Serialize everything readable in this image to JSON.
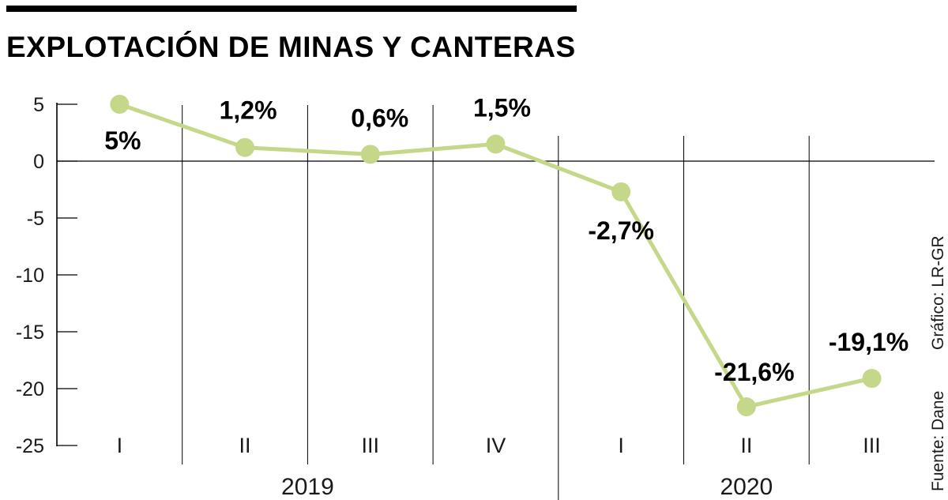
{
  "chart_data": {
    "type": "line",
    "title": "EXPLOTACIÓN DE MINAS Y CANTERAS",
    "categories": [
      "I",
      "II",
      "III",
      "IV",
      "I",
      "II",
      "III"
    ],
    "years": [
      "2019",
      "2020"
    ],
    "values": [
      5,
      1.2,
      0.6,
      1.5,
      -2.7,
      -21.6,
      -19.1
    ],
    "data_labels": [
      "5%",
      "1,2%",
      "0,6%",
      "1,5%",
      "-2,7%",
      "-21,6%",
      "-19,1%"
    ],
    "y_ticks": [
      5,
      0,
      -5,
      -10,
      -15,
      -20,
      -25
    ],
    "ylim": [
      -25,
      5
    ],
    "xlabel": "",
    "ylabel": "",
    "line_color": "#c5d88a",
    "marker_color": "#c5d88a"
  },
  "credits": {
    "source": "Fuente: Dane",
    "graphic": "Gráfico: LR-GR"
  }
}
